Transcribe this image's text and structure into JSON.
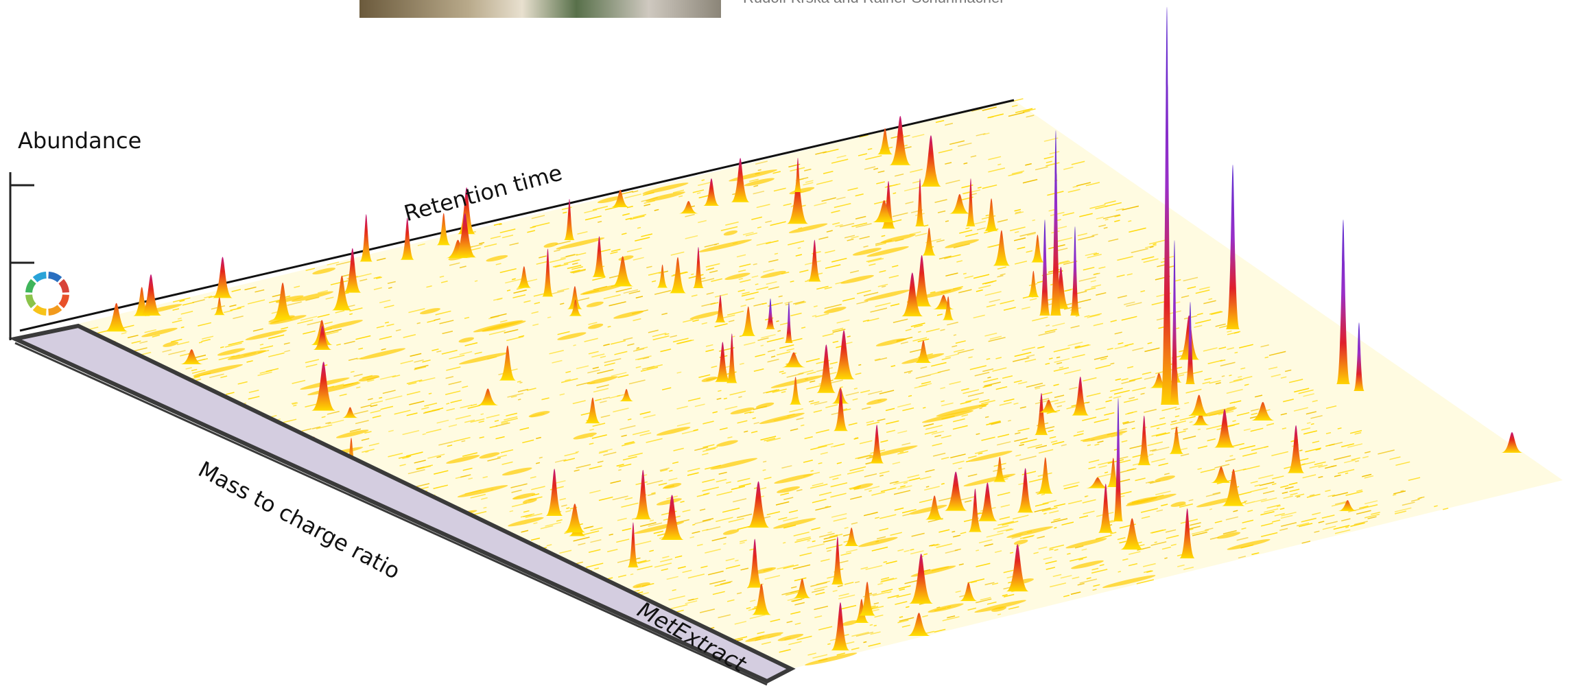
{
  "header": {
    "authors": "Rudolf Krska and Rainer Schuhmacher"
  },
  "axes": {
    "abundance": "Abundance",
    "retention_time": "Retention time",
    "mass_to_charge": "Mass to charge ratio"
  },
  "logo": {
    "text": "MetExtract"
  }
}
